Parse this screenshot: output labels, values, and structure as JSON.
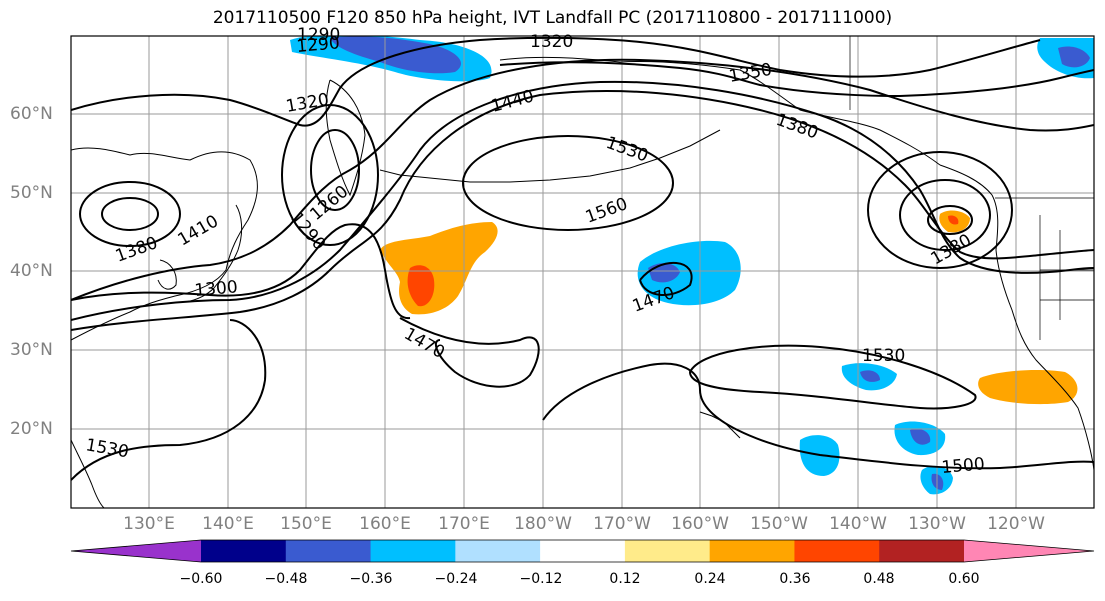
{
  "title": "2017110500 F120 850 hPa height, IVT Landfall PC (2017110800 - 2017111000)",
  "latitude_labels": [
    "60°N",
    "50°N",
    "40°N",
    "30°N",
    "20°N"
  ],
  "longitude_labels": [
    "130°E",
    "140°E",
    "150°E",
    "160°E",
    "170°E",
    "180°W",
    "170°W",
    "160°W",
    "150°W",
    "140°W",
    "130°W",
    "120°W"
  ],
  "contour_labels": [
    "1290",
    "1290",
    "1320",
    "1320",
    "1350",
    "1380",
    "1440",
    "1530",
    "1560",
    "1260",
    "1290",
    "1410",
    "1380",
    "1300",
    "1380",
    "1470",
    "1470",
    "1530",
    "1500",
    "1530"
  ],
  "colorbar": {
    "tick_labels": [
      "−0.60",
      "−0.48",
      "−0.36",
      "−0.24",
      "−0.12",
      "0.12",
      "0.24",
      "0.36",
      "0.48",
      "0.60"
    ],
    "colors": [
      "#9932cc",
      "#00008b",
      "#3a5bd0",
      "#00bfff",
      "#b0e0ff",
      "#ffffff",
      "#ffeb8a",
      "#ffa500",
      "#ff4500",
      "#b22222",
      "#ff86b4"
    ]
  },
  "palette": {
    "grid": "#9a9a9a",
    "axis_text": "#808080",
    "contour": "#000000"
  }
}
